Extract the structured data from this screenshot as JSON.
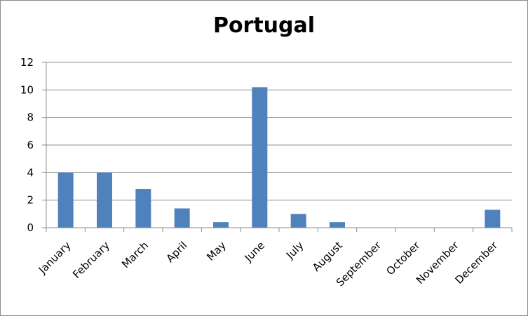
{
  "chart_data": {
    "type": "bar",
    "title": "Portugal",
    "categories": [
      "January",
      "February",
      "March",
      "April",
      "May",
      "June",
      "July",
      "August",
      "September",
      "October",
      "November",
      "December"
    ],
    "values": [
      4,
      4,
      2.8,
      1.4,
      0.4,
      10.2,
      1,
      0.4,
      0,
      0,
      0,
      1.3
    ],
    "ylim": [
      0,
      12
    ],
    "yticks": [
      0,
      2,
      4,
      6,
      8,
      10,
      12
    ],
    "grid": true,
    "legend": "none",
    "bar_color": "#4f81bd",
    "xlabel": "",
    "ylabel": ""
  }
}
